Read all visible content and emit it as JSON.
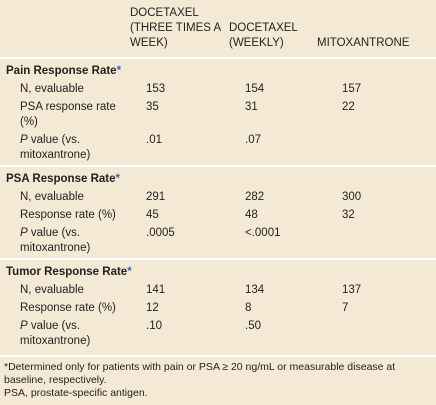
{
  "table": {
    "headers": [
      "DOCETAXEL (THREE TIMES A WEEK)",
      "DOCETAXEL (WEEKLY)",
      "MITOXANTRONE"
    ],
    "sections": [
      {
        "title": "Pain Response Rate",
        "mark": "*",
        "rows": [
          {
            "label": "N, evaluable",
            "values": [
              "153",
              "154",
              "157"
            ]
          },
          {
            "label": "PSA response rate (%)",
            "values": [
              "35",
              "31",
              "22"
            ]
          },
          {
            "label": {
              "italic": "P",
              "text": " value (vs. mitoxantrone)"
            },
            "values": [
              ".01",
              ".07"
            ]
          }
        ]
      },
      {
        "title": "PSA Response Rate",
        "mark": "*",
        "rows": [
          {
            "label": "N, evaluable",
            "values": [
              "291",
              "282",
              "300"
            ]
          },
          {
            "label": "Response rate (%)",
            "values": [
              "45",
              "48",
              "32"
            ]
          },
          {
            "label": {
              "italic": "P",
              "text": " value (vs. mitoxantrone)"
            },
            "values": [
              ".0005",
              "<.0001"
            ]
          }
        ]
      },
      {
        "title": "Tumor Response Rate",
        "mark": "*",
        "rows": [
          {
            "label": "N, evaluable",
            "values": [
              "141",
              "134",
              "137"
            ]
          },
          {
            "label": "Response rate (%)",
            "values": [
              "12",
              "8",
              "7"
            ]
          },
          {
            "label": {
              "italic": "P",
              "text": " value (vs. mitoxantrone)"
            },
            "values": [
              ".10",
              ".50"
            ]
          }
        ]
      }
    ],
    "footnotes": [
      "*Determined only for patients with pain or PSA ≥ 20 ng/mL or measurable disease at baseline, respectively.",
      "PSA, prostate-specific antigen."
    ]
  }
}
